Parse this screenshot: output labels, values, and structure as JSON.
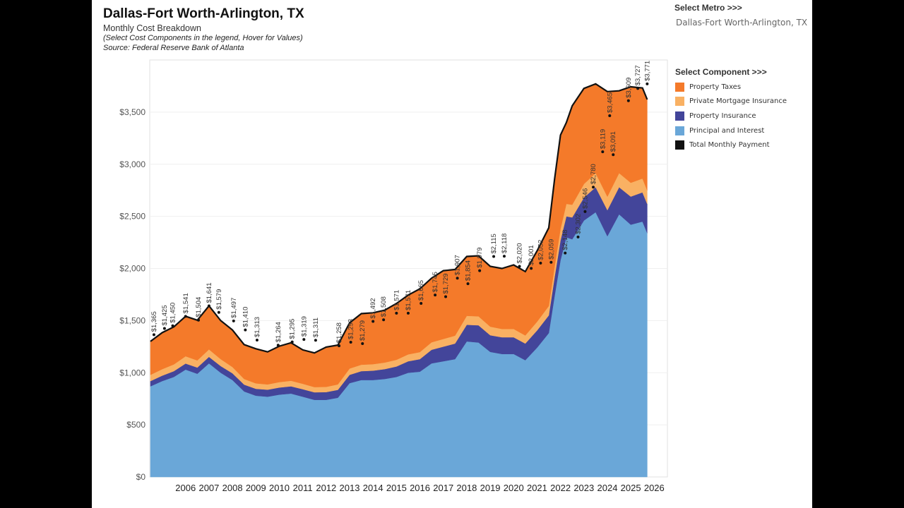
{
  "header": {
    "title": "Dallas-Fort Worth-Arlington, TX",
    "subtitle": "Monthly Cost Breakdown",
    "instruction": "(Select Cost Components in the legend, Hover for Values)",
    "source": "Source: Federal Reserve Bank of Atlanta"
  },
  "metro": {
    "label": "Select Metro >>>",
    "value": "Dallas-Fort Worth-Arlington, TX"
  },
  "legend": {
    "title": "Select Component >>>",
    "items": [
      {
        "label": "Property Taxes",
        "color": "#f47a2a"
      },
      {
        "label": "Private Mortgage Insurance",
        "color": "#f9b163"
      },
      {
        "label": "Property Insurance",
        "color": "#43459a"
      },
      {
        "label": "Principal and Interest",
        "color": "#6aa7d8"
      },
      {
        "label": "Total Monthly Payment",
        "color": "#111111"
      }
    ]
  },
  "chart_data": {
    "type": "area",
    "stacked": true,
    "ylim": [
      0,
      4000
    ],
    "yticks": [
      0,
      500,
      1000,
      1500,
      2000,
      2500,
      3000,
      3500
    ],
    "ytick_labels": [
      "$0",
      "$500",
      "$1,000",
      "$1,500",
      "$2,000",
      "$2,500",
      "$3,000",
      "$3,500"
    ],
    "xlim": [
      2005.0,
      2026.4
    ],
    "xticks": [
      2006,
      2007,
      2008,
      2009,
      2010,
      2011,
      2012,
      2013,
      2014,
      2015,
      2016,
      2017,
      2018,
      2019,
      2020,
      2021,
      2022,
      2023,
      2024,
      2025,
      2026
    ],
    "x": [
      2005.0,
      2005.5,
      2006.0,
      2006.5,
      2007.0,
      2007.5,
      2008.0,
      2008.5,
      2009.0,
      2009.5,
      2010.0,
      2010.5,
      2011.0,
      2011.5,
      2012.0,
      2012.5,
      2013.0,
      2013.5,
      2014.0,
      2014.5,
      2015.0,
      2015.5,
      2016.0,
      2016.5,
      2017.0,
      2017.5,
      2018.0,
      2018.5,
      2019.0,
      2019.5,
      2020.0,
      2020.5,
      2021.0,
      2021.5,
      2022.0,
      2022.25,
      2022.5,
      2022.75,
      2023.0,
      2023.5,
      2024.0,
      2024.5,
      2025.0,
      2025.5,
      2026.0,
      2026.2
    ],
    "series": [
      {
        "name": "Principal and Interest",
        "color": "#6aa7d8",
        "values": [
          870,
          920,
          960,
          1030,
          990,
          1090,
          1000,
          930,
          820,
          780,
          770,
          790,
          800,
          770,
          740,
          740,
          760,
          900,
          930,
          930,
          940,
          960,
          1000,
          1010,
          1090,
          1110,
          1130,
          1300,
          1290,
          1200,
          1180,
          1180,
          1120,
          1240,
          1380,
          1740,
          2080,
          2300,
          2280,
          2460,
          2540,
          2310,
          2520,
          2420,
          2450,
          2340
        ]
      },
      {
        "name": "Property Insurance",
        "color": "#43459a",
        "values": [
          50,
          52,
          55,
          58,
          60,
          62,
          64,
          65,
          66,
          66,
          67,
          68,
          70,
          72,
          72,
          74,
          76,
          80,
          85,
          90,
          95,
          100,
          110,
          120,
          130,
          140,
          150,
          160,
          165,
          160,
          160,
          160,
          160,
          165,
          170,
          180,
          190,
          200,
          210,
          220,
          240,
          250,
          260,
          270,
          280,
          280
        ]
      },
      {
        "name": "Private Mortgage Insurance",
        "color": "#f9b163",
        "values": [
          60,
          62,
          65,
          70,
          68,
          72,
          66,
          60,
          54,
          52,
          51,
          52,
          53,
          52,
          50,
          50,
          52,
          60,
          62,
          62,
          63,
          64,
          66,
          68,
          72,
          74,
          76,
          86,
          86,
          82,
          80,
          80,
          78,
          84,
          90,
          100,
          110,
          120,
          122,
          130,
          135,
          130,
          135,
          132,
          133,
          130
        ]
      },
      {
        "name": "Property Taxes",
        "color": "#f47a2a",
        "values": [
          320,
          350,
          360,
          383,
          386,
          417,
          370,
          355,
          330,
          332,
          312,
          345,
          364,
          325,
          328,
          382,
          377,
          438,
          490,
          493,
          502,
          540,
          569,
          607,
          615,
          655,
          634,
          569,
          581,
          578,
          580,
          614,
          612,
          679,
          750,
          840,
          900,
          780,
          948,
          917,
          856,
          1007,
          789,
          921,
          869,
          871
        ]
      }
    ],
    "total": {
      "name": "Total Monthly Payment",
      "color": "#111111",
      "values": [
        1300,
        1384,
        1440,
        1541,
        1504,
        1641,
        1500,
        1410,
        1270,
        1230,
        1200,
        1255,
        1287,
        1219,
        1190,
        1246,
        1265,
        1478,
        1567,
        1575,
        1600,
        1664,
        1745,
        1805,
        1907,
        1979,
        1990,
        2115,
        2122,
        2020,
        2000,
        2034,
        1970,
        2168,
        2390,
        2860,
        3280,
        3400,
        3560,
        3727,
        3771,
        3697,
        3704,
        3743,
        3732,
        3621
      ]
    },
    "annotations": [
      {
        "x": 2005.15,
        "y": 1365,
        "label": "$1,365"
      },
      {
        "x": 2005.6,
        "y": 1425,
        "label": "$1,425"
      },
      {
        "x": 2005.95,
        "y": 1450,
        "label": "$1,450"
      },
      {
        "x": 2006.5,
        "y": 1541,
        "label": "$1,541"
      },
      {
        "x": 2007.05,
        "y": 1504,
        "label": "$1,504"
      },
      {
        "x": 2007.5,
        "y": 1641,
        "label": "$1,641"
      },
      {
        "x": 2007.92,
        "y": 1579,
        "label": "$1,579"
      },
      {
        "x": 2008.55,
        "y": 1497,
        "label": "$1,497"
      },
      {
        "x": 2009.05,
        "y": 1410,
        "label": "$1,410"
      },
      {
        "x": 2009.55,
        "y": 1313,
        "label": "$1,313"
      },
      {
        "x": 2010.45,
        "y": 1264,
        "label": "$1,264"
      },
      {
        "x": 2011.05,
        "y": 1295,
        "label": "$1,295"
      },
      {
        "x": 2011.55,
        "y": 1319,
        "label": "$1,319"
      },
      {
        "x": 2012.05,
        "y": 1311,
        "label": "$1,311"
      },
      {
        "x": 2013.05,
        "y": 1258,
        "label": "$1,258"
      },
      {
        "x": 2013.55,
        "y": 1293,
        "label": "$1,293"
      },
      {
        "x": 2014.05,
        "y": 1279,
        "label": "$1,279"
      },
      {
        "x": 2014.5,
        "y": 1492,
        "label": "$1,492"
      },
      {
        "x": 2014.95,
        "y": 1508,
        "label": "$1,508"
      },
      {
        "x": 2015.5,
        "y": 1571,
        "label": "$1,571"
      },
      {
        "x": 2016.0,
        "y": 1571,
        "label": "$1,571"
      },
      {
        "x": 2016.55,
        "y": 1665,
        "label": "$1,665"
      },
      {
        "x": 2017.15,
        "y": 1745,
        "label": "$1,745"
      },
      {
        "x": 2017.6,
        "y": 1729,
        "label": "$1,729"
      },
      {
        "x": 2018.1,
        "y": 1907,
        "label": "$1,907"
      },
      {
        "x": 2018.55,
        "y": 1854,
        "label": "$1,854"
      },
      {
        "x": 2019.05,
        "y": 1979,
        "label": "$1,979"
      },
      {
        "x": 2019.65,
        "y": 2115,
        "label": "$2,115"
      },
      {
        "x": 2020.1,
        "y": 2118,
        "label": "$2,118"
      },
      {
        "x": 2020.75,
        "y": 2020,
        "label": "$2,020"
      },
      {
        "x": 2021.25,
        "y": 2001,
        "label": "$2,001"
      },
      {
        "x": 2021.65,
        "y": 2052,
        "label": "$2,052"
      },
      {
        "x": 2022.1,
        "y": 2059,
        "label": "$2,059"
      },
      {
        "x": 2022.7,
        "y": 2148,
        "label": "$2,148"
      },
      {
        "x": 2023.25,
        "y": 2302,
        "label": "$2,302"
      },
      {
        "x": 2023.55,
        "y": 2546,
        "label": "$2,546"
      },
      {
        "x": 2023.9,
        "y": 2780,
        "label": "$2,780"
      },
      {
        "x": 2024.3,
        "y": 3119,
        "label": "$3,119"
      },
      {
        "x": 2024.6,
        "y": 3465,
        "label": "$3,465"
      },
      {
        "x": 2024.75,
        "y": 3091,
        "label": "$3,091"
      },
      {
        "x": 2025.4,
        "y": 3609,
        "label": "$3,609"
      },
      {
        "x": 2025.8,
        "y": 3727,
        "label": "$3,727"
      },
      {
        "x": 2026.2,
        "y": 3771,
        "label": "$3,771"
      }
    ]
  }
}
